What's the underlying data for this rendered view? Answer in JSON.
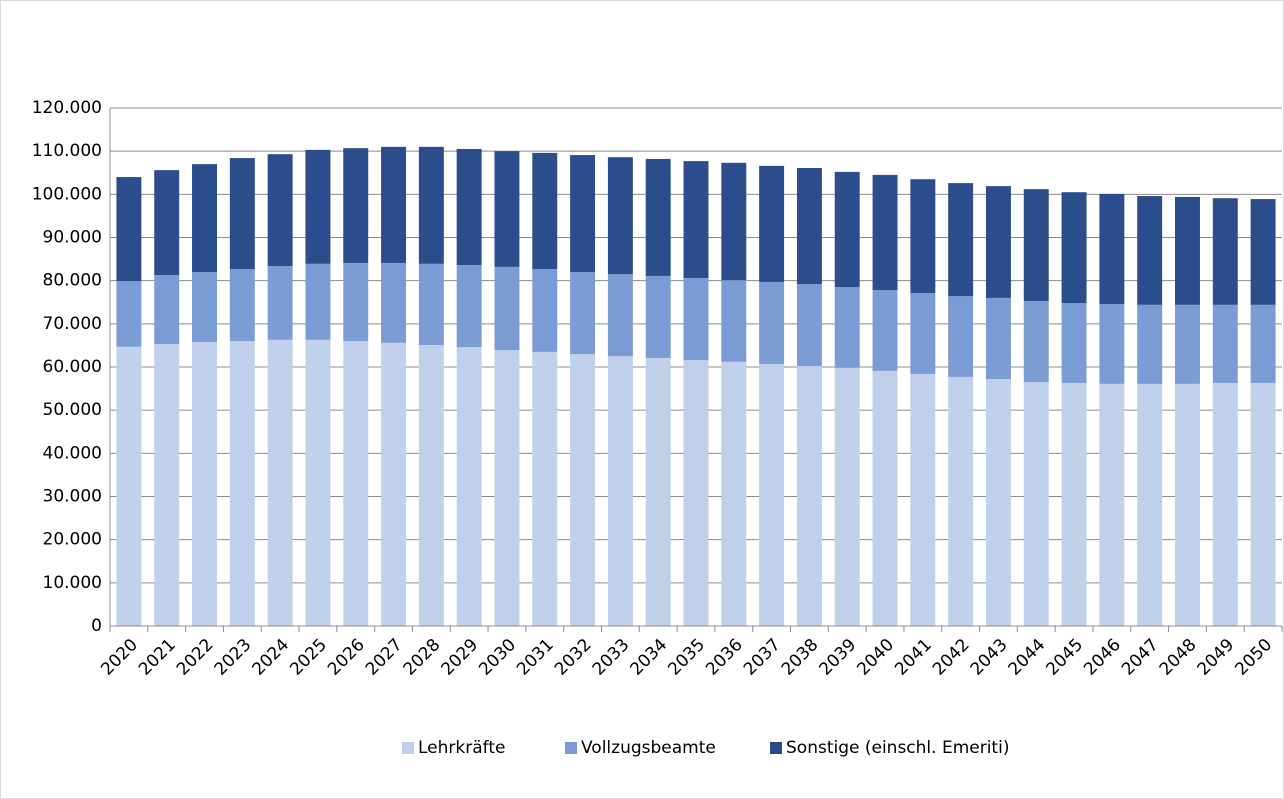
{
  "chart_data": {
    "type": "stacked_bar",
    "categories": [
      "2020",
      "2021",
      "2022",
      "2023",
      "2024",
      "2025",
      "2026",
      "2027",
      "2028",
      "2029",
      "2030",
      "2031",
      "2032",
      "2033",
      "2034",
      "2035",
      "2036",
      "2037",
      "2038",
      "2039",
      "2040",
      "2041",
      "2042",
      "2043",
      "2044",
      "2045",
      "2046",
      "2047",
      "2048",
      "2049",
      "2050"
    ],
    "series": [
      {
        "name": "Lehrkräfte",
        "color": "#c0cfea",
        "values": [
          64700,
          65300,
          65800,
          66000,
          66300,
          66300,
          66000,
          65600,
          65100,
          64600,
          63900,
          63500,
          63000,
          62500,
          62100,
          61600,
          61200,
          60700,
          60200,
          59800,
          59100,
          58400,
          57700,
          57200,
          56500,
          56300,
          56100,
          56100,
          56100,
          56300,
          56300
        ]
      },
      {
        "name": "Vollzugsbeamte",
        "color": "#7b9bd4",
        "values": [
          15200,
          16000,
          16200,
          16700,
          17100,
          17600,
          18100,
          18500,
          18800,
          19000,
          19300,
          19200,
          19000,
          19000,
          19000,
          19000,
          18900,
          19000,
          19000,
          18700,
          18700,
          18700,
          18700,
          18800,
          18800,
          18500,
          18500,
          18300,
          18300,
          18100,
          18100
        ]
      },
      {
        "name": "Sonstige (einschl. Emeriti)",
        "color": "#2b4d8c",
        "values": [
          24100,
          24300,
          25000,
          25700,
          25900,
          26400,
          26600,
          26900,
          27100,
          26900,
          26800,
          26900,
          27100,
          27100,
          27100,
          27100,
          27200,
          26900,
          26900,
          26700,
          26700,
          26400,
          26200,
          25900,
          25900,
          25700,
          25500,
          25200,
          25000,
          24700,
          24500
        ]
      }
    ],
    "ylim": [
      0,
      120000
    ],
    "yticks": [
      0,
      {
        "value": 10000,
        "label": "10.000"
      },
      {
        "value": 20000,
        "label": "20.000"
      },
      {
        "value": 30000,
        "label": "30.000"
      },
      {
        "value": 40000,
        "label": "40.000"
      },
      {
        "value": 50000,
        "label": "50.000"
      },
      {
        "value": 60000,
        "label": "60.000"
      },
      {
        "value": 70000,
        "label": "70.000"
      },
      {
        "value": 80000,
        "label": "80.000"
      },
      {
        "value": 90000,
        "label": "90.000"
      },
      {
        "value": 100000,
        "label": "100.000"
      },
      {
        "value": 110000,
        "label": "110.000"
      },
      {
        "value": 120000,
        "label": "120.000"
      }
    ],
    "grid": true,
    "legend": "bottom"
  }
}
